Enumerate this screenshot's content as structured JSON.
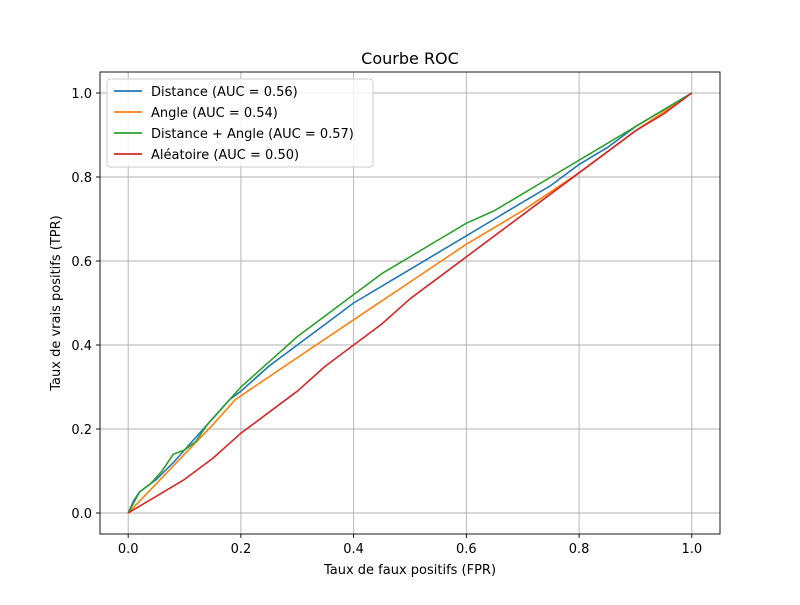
{
  "chart_data": {
    "type": "line",
    "title": "Courbe ROC",
    "xlabel": "Taux de faux positifs (FPR)",
    "ylabel": "Taux de vrais positifs (TPR)",
    "xlim": [
      -0.05,
      1.05
    ],
    "ylim": [
      -0.05,
      1.05
    ],
    "xticks": [
      "0.0",
      "0.2",
      "0.4",
      "0.6",
      "0.8",
      "1.0"
    ],
    "yticks": [
      "0.0",
      "0.2",
      "0.4",
      "0.6",
      "0.8",
      "1.0"
    ],
    "grid": true,
    "legend_position": "top-left",
    "series": [
      {
        "name": "Distance (AUC = 0.56)",
        "color": "#1f77b4",
        "x": [
          0,
          0.01,
          0.02,
          0.03,
          0.05,
          0.08,
          0.1,
          0.12,
          0.14,
          0.16,
          0.18,
          0.2,
          0.25,
          0.3,
          0.35,
          0.4,
          0.45,
          0.5,
          0.55,
          0.6,
          0.65,
          0.7,
          0.75,
          0.8,
          0.85,
          0.9,
          0.95,
          1.0
        ],
        "y": [
          0,
          0.03,
          0.05,
          0.06,
          0.08,
          0.12,
          0.15,
          0.18,
          0.21,
          0.24,
          0.27,
          0.29,
          0.35,
          0.4,
          0.45,
          0.5,
          0.54,
          0.58,
          0.62,
          0.66,
          0.7,
          0.74,
          0.78,
          0.83,
          0.87,
          0.92,
          0.96,
          1.0
        ]
      },
      {
        "name": "Angle (AUC = 0.54)",
        "color": "#ff7f0e",
        "x": [
          0,
          0.05,
          0.1,
          0.15,
          0.19,
          0.3,
          0.4,
          0.5,
          0.6,
          0.7,
          0.8,
          0.9,
          1.0
        ],
        "y": [
          0,
          0.07,
          0.14,
          0.21,
          0.27,
          0.37,
          0.46,
          0.55,
          0.64,
          0.72,
          0.81,
          0.91,
          1.0
        ]
      },
      {
        "name": "Distance + Angle (AUC = 0.57)",
        "color": "#2ca02c",
        "x": [
          0,
          0.02,
          0.04,
          0.06,
          0.08,
          0.1,
          0.12,
          0.14,
          0.16,
          0.18,
          0.2,
          0.25,
          0.3,
          0.35,
          0.4,
          0.45,
          0.5,
          0.55,
          0.6,
          0.65,
          0.7,
          0.75,
          0.8,
          0.85,
          0.9,
          0.95,
          1.0
        ],
        "y": [
          0,
          0.05,
          0.07,
          0.1,
          0.14,
          0.15,
          0.17,
          0.21,
          0.24,
          0.27,
          0.3,
          0.36,
          0.42,
          0.47,
          0.52,
          0.57,
          0.61,
          0.65,
          0.69,
          0.72,
          0.76,
          0.8,
          0.84,
          0.88,
          0.92,
          0.96,
          1.0
        ]
      },
      {
        "name": "Aléatoire (AUC = 0.50)",
        "color": "#d62728",
        "x": [
          0,
          0.05,
          0.1,
          0.15,
          0.2,
          0.25,
          0.3,
          0.35,
          0.4,
          0.45,
          0.5,
          0.55,
          0.6,
          0.65,
          0.7,
          0.75,
          0.8,
          0.85,
          0.9,
          0.95,
          1.0
        ],
        "y": [
          0,
          0.04,
          0.08,
          0.13,
          0.19,
          0.24,
          0.29,
          0.35,
          0.4,
          0.45,
          0.51,
          0.56,
          0.61,
          0.66,
          0.71,
          0.76,
          0.81,
          0.86,
          0.91,
          0.95,
          1.0
        ]
      }
    ]
  }
}
